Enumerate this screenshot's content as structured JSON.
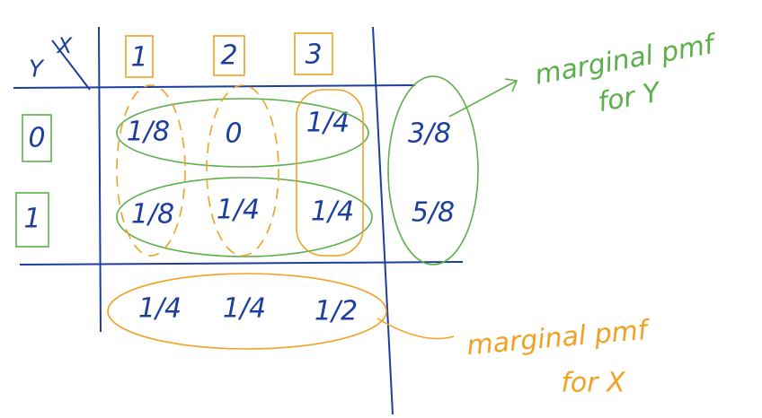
{
  "corner": {
    "row_var": "Y",
    "col_var": "X"
  },
  "columns": [
    "1",
    "2",
    "3"
  ],
  "rows": [
    {
      "label": "0",
      "cells": [
        "1/8",
        "0",
        "1/4"
      ],
      "marginal": "3/8"
    },
    {
      "label": "1",
      "cells": [
        "1/8",
        "1/4",
        "1/4"
      ],
      "marginal": "5/8"
    }
  ],
  "marginal_x": [
    "1/4",
    "1/4",
    "1/2"
  ],
  "annotations": {
    "marginal_y": [
      "marginal pmf",
      "for Y"
    ],
    "marginal_x": [
      "marginal pmf",
      "for X"
    ]
  }
}
